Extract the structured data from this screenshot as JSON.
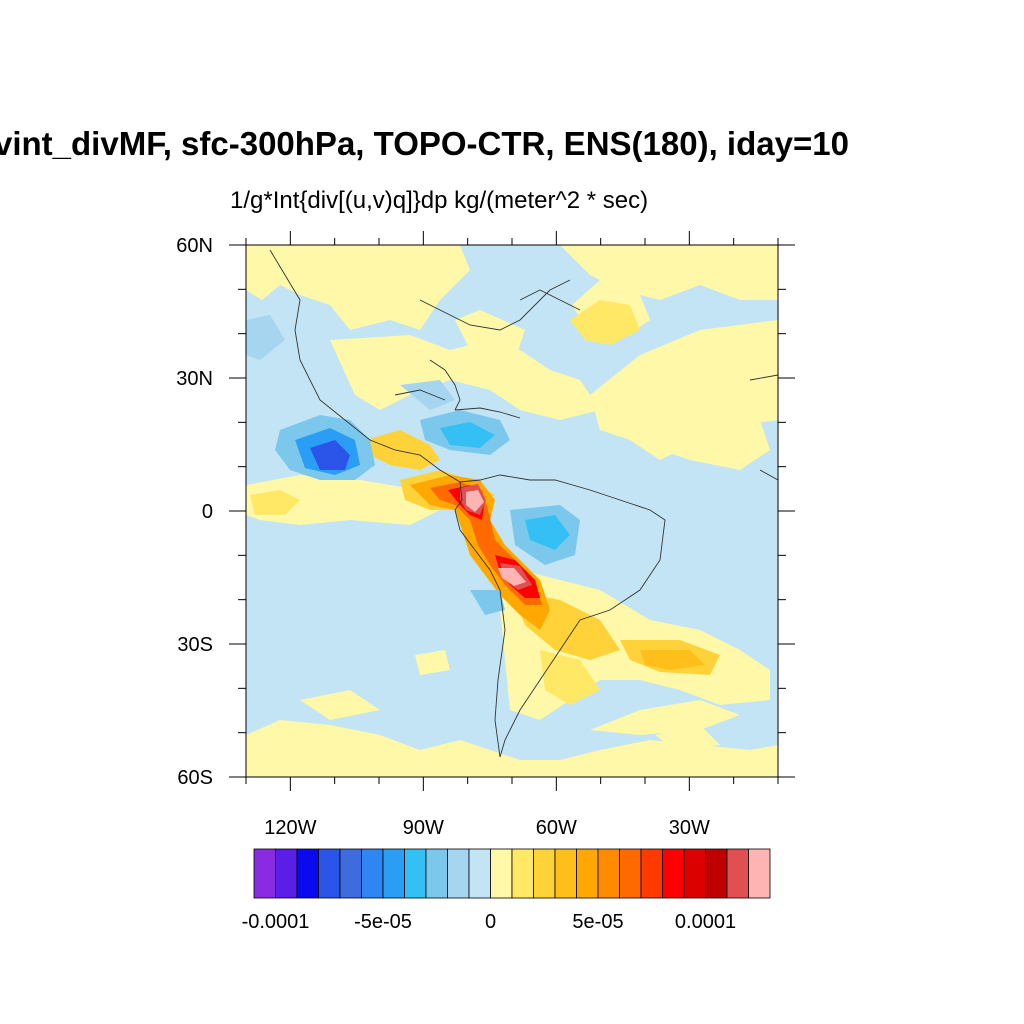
{
  "title": "vint_divMF, sfc-300hPa, TOPO-CTR, ENS(180), iday=10",
  "subtitle": "1/g*Int{div[(u,v)q]}dp  kg/(meter^2 * sec)",
  "map": {
    "lon_range": [
      -130,
      -10
    ],
    "lat_range": [
      -60,
      60
    ],
    "lat_ticks": [
      {
        "value": 60,
        "label": "60N"
      },
      {
        "value": 30,
        "label": "30N"
      },
      {
        "value": 0,
        "label": "0"
      },
      {
        "value": -30,
        "label": "30S"
      },
      {
        "value": -60,
        "label": "60S"
      }
    ],
    "lon_ticks": [
      {
        "value": -120,
        "label": "120W"
      },
      {
        "value": -90,
        "label": "90W"
      },
      {
        "value": -60,
        "label": "60W"
      },
      {
        "value": -30,
        "label": "30W"
      }
    ]
  },
  "colorbar": {
    "colors": [
      "#8a2be2",
      "#5a1fe6",
      "#0a0af0",
      "#2a55e8",
      "#3d6cde",
      "#2f86f2",
      "#2a9ef5",
      "#35c0f5",
      "#7cc8ec",
      "#a6d6ef",
      "#c2e4f4",
      "#fff8a8",
      "#ffe866",
      "#ffd23a",
      "#ffbf1a",
      "#ffa800",
      "#ff8c00",
      "#ff6a00",
      "#ff3a00",
      "#ff0000",
      "#dd0000",
      "#bf0000",
      "#e05050",
      "#ffb4b4"
    ],
    "labels": [
      {
        "text": "-0.0001",
        "level": -0.0001
      },
      {
        "text": "-5e-05",
        "level": -5e-05
      },
      {
        "text": "0",
        "level": 0
      },
      {
        "text": "5e-05",
        "level": 5e-05
      },
      {
        "text": "0.0001",
        "level": 0.0001
      }
    ]
  }
}
